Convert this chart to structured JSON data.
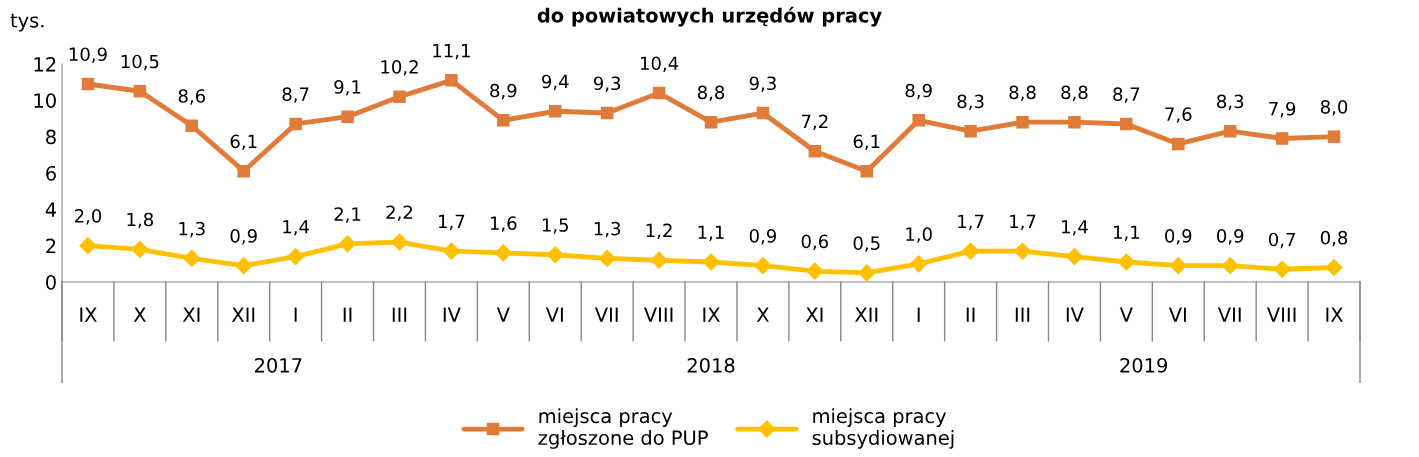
{
  "chart_data": {
    "type": "line",
    "title": "do powiatowych urzędów pracy",
    "ylabel": "tys.",
    "categories": [
      "IX",
      "X",
      "XI",
      "XII",
      "I",
      "II",
      "III",
      "IV",
      "V",
      "VI",
      "VII",
      "VIII",
      "IX",
      "X",
      "XI",
      "XII",
      "I",
      "II",
      "III",
      "IV",
      "V",
      "VI",
      "VII",
      "VIII",
      "IX"
    ],
    "annotations": [
      "2017",
      "2018",
      "2019"
    ],
    "series": [
      {
        "name": "miejsca pracy\nzgłoszone do PUP",
        "color": "#e07b39",
        "marker": "square",
        "values": [
          10.9,
          10.5,
          8.6,
          6.1,
          8.7,
          9.1,
          10.2,
          11.1,
          8.9,
          9.4,
          9.3,
          10.4,
          8.8,
          9.3,
          7.2,
          6.1,
          8.9,
          8.3,
          8.8,
          8.8,
          8.7,
          7.6,
          8.3,
          7.9,
          8.0
        ],
        "value_labels": [
          "10,9",
          "10,5",
          "8,6",
          "6,1",
          "8,7",
          "9,1",
          "10,2",
          "11,1",
          "8,9",
          "9,4",
          "9,3",
          "10,4",
          "8,8",
          "9,3",
          "7,2",
          "6,1",
          "8,9",
          "8,3",
          "8,8",
          "8,8",
          "8,7",
          "7,6",
          "8,3",
          "7,9",
          "8,0"
        ]
      },
      {
        "name": "miejsca pracy\nsubsydiowanej",
        "color": "#ffc000",
        "marker": "diamond",
        "values": [
          2.0,
          1.8,
          1.3,
          0.9,
          1.4,
          2.1,
          2.2,
          1.7,
          1.6,
          1.5,
          1.3,
          1.2,
          1.1,
          0.9,
          0.6,
          0.5,
          1.0,
          1.7,
          1.7,
          1.4,
          1.1,
          0.9,
          0.9,
          0.7,
          0.8
        ],
        "value_labels": [
          "2,0",
          "1,8",
          "1,3",
          "0,9",
          "1,4",
          "2,1",
          "2,2",
          "1,7",
          "1,6",
          "1,5",
          "1,3",
          "1,2",
          "1,1",
          "0,9",
          "0,6",
          "0,5",
          "1,0",
          "1,7",
          "1,7",
          "1,4",
          "1,1",
          "0,9",
          "0,9",
          "0,7",
          "0,8"
        ]
      }
    ],
    "ylim": [
      0,
      12
    ],
    "yticks": [
      0,
      2,
      4,
      6,
      8,
      10,
      12
    ],
    "grid": false,
    "legend": "bottom"
  }
}
